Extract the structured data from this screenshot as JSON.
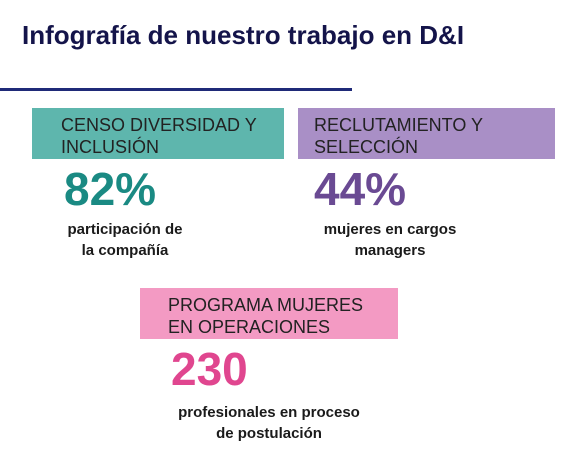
{
  "title": "Infografía de nuestro trabajo en D&I",
  "colors": {
    "title": "#14144a",
    "rule": "#1f2a78",
    "teal": "#5eb6ad",
    "teal_text": "#1a8a83",
    "purple": "#a98fc6",
    "purple_text": "#6a4a93",
    "pink": "#f39ac3",
    "pink_text": "#e0468f"
  },
  "cards": [
    {
      "header": "CENSO DIVERSIDAD Y\nINCLUSIÓN",
      "stat": "82%",
      "description": "participación de\nla compañía"
    },
    {
      "header": "RECLUTAMIENTO Y\nSELECCIÓN",
      "stat": "44%",
      "description": "mujeres en cargos\nmanagers"
    },
    {
      "header": "PROGRAMA MUJERES\nEN OPERACIONES",
      "stat": "230",
      "description": "profesionales en proceso\nde postulación"
    }
  ]
}
